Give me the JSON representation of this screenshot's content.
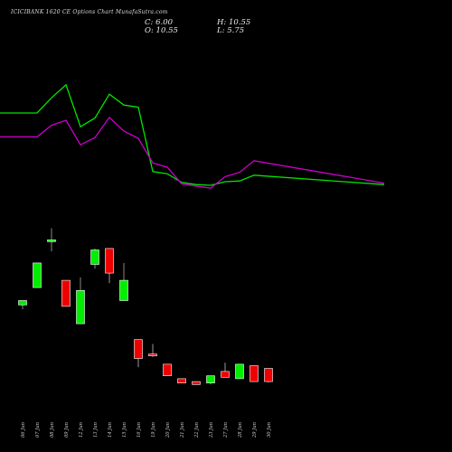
{
  "chart_data": {
    "type": "candlestick",
    "title": "ICICIBANK 1620  CE Options  Chart MunafaSutra.com",
    "ohlc_summary": {
      "open_label": "O:",
      "open_value": "10.55",
      "high_label": "H:",
      "high_value": "10.55",
      "low_label": "L:",
      "low_value": "5.75",
      "close_label": "C:",
      "close_value": "6.00"
    },
    "categories": [
      "06 Jun",
      "07 Jun",
      "08 Jun",
      "09 Jun",
      "12 Jun",
      "13 Jun",
      "14 Jun",
      "15 Jun",
      "16 Jun",
      "19 Jun",
      "20 Jun",
      "21 Jun",
      "22 Jun",
      "23 Jun",
      "27 Jun",
      "28 Jun",
      "29 Jun",
      "30 Jun"
    ],
    "candles": [
      {
        "open": 32.5,
        "high": 34.0,
        "low": 31.0,
        "close": 34.0
      },
      {
        "open": 38.5,
        "high": 47.0,
        "low": 38.5,
        "close": 47.0
      },
      {
        "open": 55.0,
        "high": 59.0,
        "low": 51.0,
        "close": 55.0
      },
      {
        "open": 41.0,
        "high": 41.0,
        "low": 32.0,
        "close": 32.0
      },
      {
        "open": 26.0,
        "high": 42.0,
        "low": 26.0,
        "close": 37.5
      },
      {
        "open": 46.5,
        "high": 52.0,
        "low": 45.0,
        "close": 51.5
      },
      {
        "open": 52.0,
        "high": 52.0,
        "low": 40.0,
        "close": 43.5
      },
      {
        "open": 34.0,
        "high": 47.0,
        "low": 34.0,
        "close": 41.0
      },
      {
        "open": 20.5,
        "high": 20.5,
        "low": 11.0,
        "close": 14.0
      },
      {
        "open": 15.5,
        "high": 19.0,
        "low": 14.5,
        "close": 15.0
      },
      {
        "open": 12.0,
        "high": 12.0,
        "low": 8.0,
        "close": 8.0
      },
      {
        "open": 7.0,
        "high": 7.0,
        "low": 5.5,
        "close": 5.5
      },
      {
        "open": 6.0,
        "high": 6.0,
        "low": 5.0,
        "close": 5.0
      },
      {
        "open": 5.5,
        "high": 8.0,
        "low": 5.0,
        "close": 8.0
      },
      {
        "open": 9.5,
        "high": 12.5,
        "low": 7.5,
        "close": 7.5
      },
      {
        "open": 7.0,
        "high": 12.0,
        "low": 7.0,
        "close": 12.0
      },
      {
        "open": 11.5,
        "high": 11.5,
        "low": 6.0,
        "close": 6.0
      },
      {
        "open": 10.55,
        "high": 10.55,
        "low": 5.75,
        "close": 6.0
      }
    ],
    "line_series": [
      {
        "color": "#00e600",
        "values": [
          203,
          203,
          224,
          242,
          184,
          196,
          229,
          214,
          211,
          122,
          119,
          107,
          104,
          103,
          108,
          109,
          117,
          104
        ]
      },
      {
        "color": "#cc00cc",
        "values": [
          170,
          170,
          186,
          193,
          159,
          169,
          197,
          178,
          168,
          134,
          128,
          105,
          102,
          99,
          115,
          121,
          137,
          106
        ]
      }
    ],
    "colors": {
      "up": "#00ee00",
      "down": "#ee0000",
      "background": "#000000"
    },
    "grid": false
  }
}
